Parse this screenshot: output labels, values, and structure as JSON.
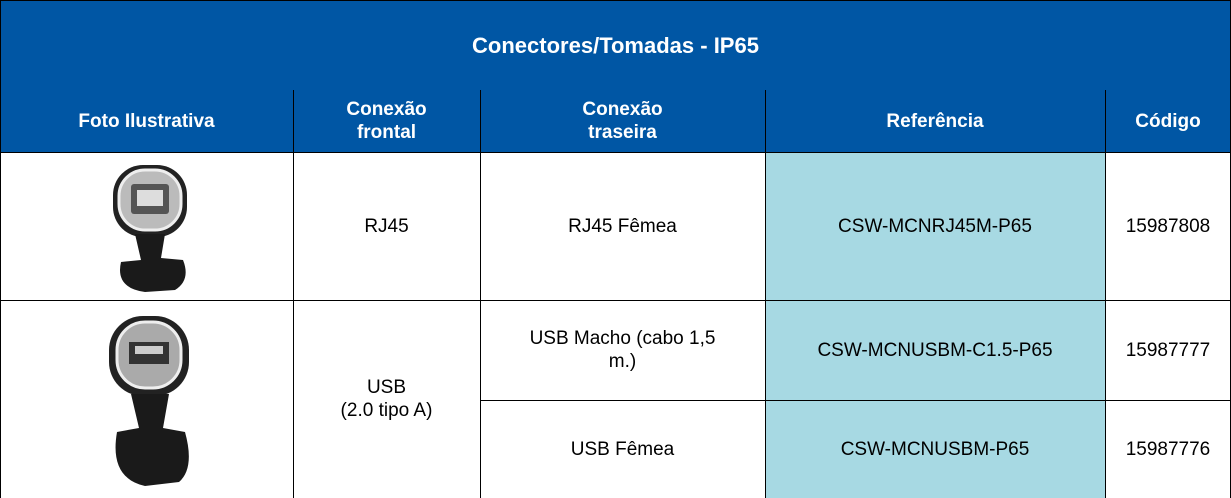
{
  "header": {
    "title": "Conectores/Tomadas - IP65"
  },
  "table": {
    "columns": [
      "Foto Ilustrativa",
      "Conexão\nfrontal",
      "Conexão\ntraseira",
      "Referência",
      "Código"
    ],
    "rows": [
      {
        "frontal": "RJ45",
        "variants": [
          {
            "traseira": "RJ45 Fêmea",
            "referencia": "CSW-MCNRJ45M-P65",
            "codigo": "15987808"
          }
        ]
      },
      {
        "frontal": "USB\n(2.0 tipo A)",
        "variants": [
          {
            "traseira": "USB Macho (cabo 1,5\nm.)",
            "referencia": "CSW-MCNUSBM-C1.5-P65",
            "codigo": "15987777"
          },
          {
            "traseira": "USB Fêmea",
            "referencia": "CSW-MCNUSBM-P65",
            "codigo": "15987776"
          }
        ]
      }
    ]
  }
}
